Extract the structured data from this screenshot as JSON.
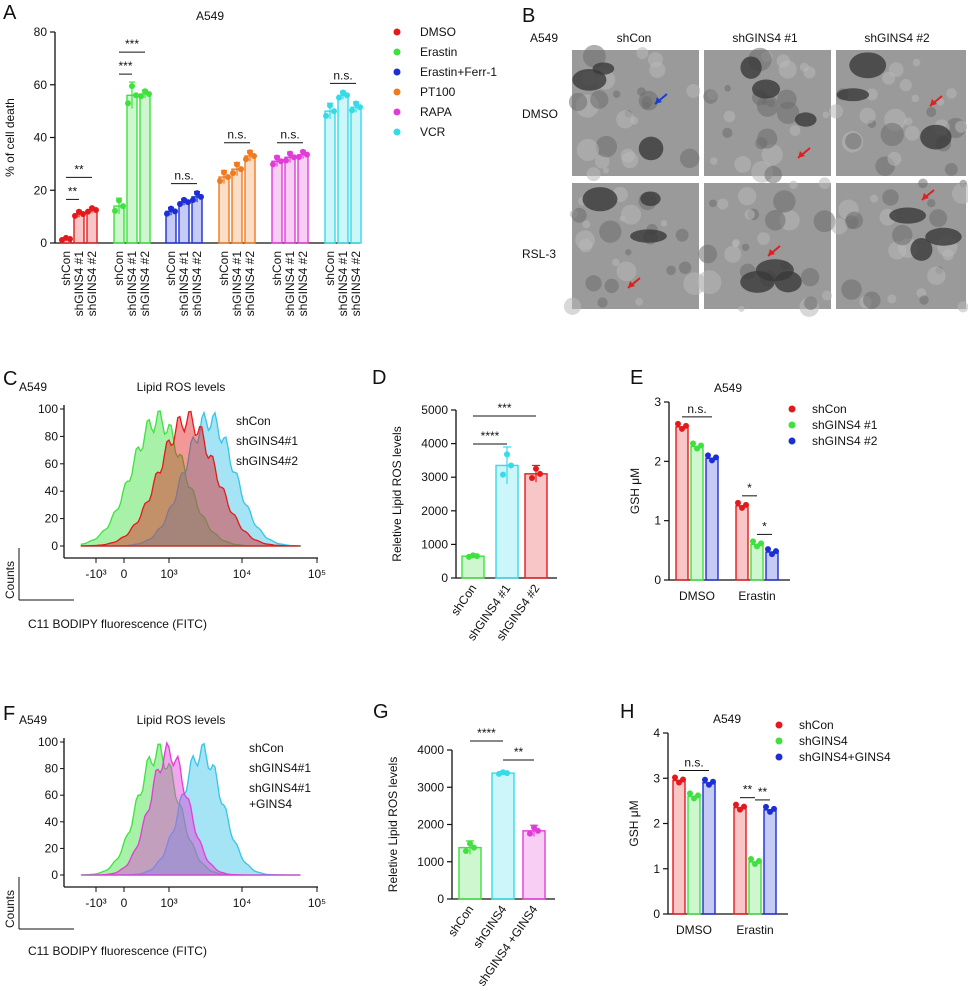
{
  "panels": {
    "A": "A",
    "B": "B",
    "C": "C",
    "D": "D",
    "E": "E",
    "F": "F",
    "G": "G",
    "H": "H"
  },
  "tem": {
    "cell_line": "A549",
    "columns": [
      "shCon",
      "shGINS4 #1",
      "shGINS4 #2"
    ],
    "rows": [
      "DMSO",
      "RSL-3"
    ],
    "arrow_colors": [
      "#1a3fd0",
      "#e02020"
    ]
  },
  "chart_data": [
    {
      "id": "A",
      "type": "bar",
      "title": "A549",
      "ylabel": "% of cell death",
      "ylim": [
        0,
        80
      ],
      "yticks": [
        0,
        20,
        40,
        60,
        80
      ],
      "categories": [
        "shCon",
        "shGINS4 #1",
        "shGINS4 #2"
      ],
      "series": [
        {
          "name": "DMSO",
          "color": "#e31a1c",
          "values": [
            1.5,
            11,
            12.5
          ],
          "err": [
            0.6,
            1.2,
            1.0
          ],
          "sig": [
            {
              "a": 0,
              "b": 1,
              "t": "**"
            },
            {
              "a": 0,
              "b": 2,
              "t": "**"
            }
          ]
        },
        {
          "name": "Erastin",
          "color": "#3ee13e",
          "values": [
            14,
            56,
            56.5
          ],
          "err": [
            3,
            5,
            1.5
          ],
          "sig": [
            {
              "a": 0,
              "b": 1,
              "t": "***"
            },
            {
              "a": 0,
              "b": 2,
              "t": "***"
            }
          ]
        },
        {
          "name": "Erastin+Ferr-1",
          "color": "#1c2fd6",
          "values": [
            12,
            15.5,
            17.5
          ],
          "err": [
            1.5,
            1.2,
            2
          ],
          "sig": [
            {
              "a": 0,
              "b": 2,
              "t": "n.s."
            }
          ]
        },
        {
          "name": "PT100",
          "color": "#f07a20",
          "values": [
            25,
            28,
            33
          ],
          "err": [
            2.5,
            2.5,
            2
          ],
          "sig": [
            {
              "a": 0,
              "b": 2,
              "t": "n.s."
            }
          ]
        },
        {
          "name": "RAPA",
          "color": "#e23cd8",
          "values": [
            31,
            32.5,
            33.5
          ],
          "err": [
            2,
            2,
            1.5
          ],
          "sig": [
            {
              "a": 0,
              "b": 2,
              "t": "n.s."
            }
          ]
        },
        {
          "name": "VCR",
          "color": "#35dbe8",
          "values": [
            50,
            56,
            51.5
          ],
          "err": [
            3,
            1.5,
            2
          ],
          "sig": [
            {
              "a": 0,
              "b": 2,
              "t": "n.s."
            }
          ]
        }
      ]
    },
    {
      "id": "C",
      "type": "histogram",
      "cell_line": "A549",
      "title": "Lipid ROS levels",
      "xlabel": "C11 BODIPY fluorescence (FITC)",
      "ylabel": "Counts",
      "yticks": [
        0,
        20,
        40,
        60,
        80,
        100
      ],
      "xticks": [
        "-10³",
        "0",
        "10³",
        "10⁴",
        "10⁵"
      ],
      "series": [
        {
          "name": "shCon",
          "color": "#3ee13e",
          "peak_log10": 2.85,
          "width": 0.36
        },
        {
          "name": "shGINS4#1",
          "color": "#35c4e8",
          "peak_log10": 3.55,
          "width": 0.34
        },
        {
          "name": "shGINS4#2",
          "color": "#e31a1c",
          "peak_log10": 3.25,
          "width": 0.38
        }
      ]
    },
    {
      "id": "D",
      "type": "bar",
      "ylabel": "Reletive  Lipid ROS levels",
      "ylim": [
        0,
        5000
      ],
      "yticks": [
        0,
        1000,
        2000,
        3000,
        4000,
        5000
      ],
      "categories": [
        "shCon",
        "shGINS4 #1",
        "shGINS4 #2"
      ],
      "colors": [
        "#3ee13e",
        "#35dbe8",
        "#e31a1c"
      ],
      "values": [
        650,
        3350,
        3100
      ],
      "err": [
        40,
        550,
        250
      ],
      "sig": [
        {
          "a": 0,
          "b": 1,
          "t": "****"
        },
        {
          "a": 0,
          "b": 2,
          "t": "***"
        }
      ]
    },
    {
      "id": "E",
      "type": "bar",
      "title": "A549",
      "ylabel": "GSH μM",
      "ylim": [
        0,
        3
      ],
      "yticks": [
        0,
        1,
        2,
        3
      ],
      "categories": [
        "DMSO",
        "Erastin"
      ],
      "series": [
        {
          "name": "shCon",
          "color": "#e31a1c",
          "values": [
            2.58,
            1.25
          ]
        },
        {
          "name": "shGINS4 #1",
          "color": "#3ee13e",
          "values": [
            2.25,
            0.6
          ]
        },
        {
          "name": "shGINS4 #2",
          "color": "#1c2fd6",
          "values": [
            2.05,
            0.47
          ]
        }
      ],
      "sig": [
        {
          "g": 0,
          "a": 0,
          "b": 2,
          "t": "n.s."
        },
        {
          "g": 1,
          "a": 0,
          "b": 1,
          "t": "*"
        },
        {
          "g": 1,
          "a": 1,
          "b": 2,
          "t": "*"
        }
      ]
    },
    {
      "id": "F",
      "type": "histogram",
      "cell_line": "A549",
      "title": "Lipid ROS levels",
      "xlabel": "C11 BODIPY fluorescence (FITC)",
      "ylabel": "Counts",
      "yticks": [
        0,
        20,
        40,
        60,
        80,
        100
      ],
      "xticks": [
        "-10³",
        "0",
        "10³",
        "10⁴",
        "10⁵"
      ],
      "series": [
        {
          "name": "shCon",
          "color": "#3ee13e",
          "peak_log10": 2.85,
          "width": 0.28
        },
        {
          "name": "shGINS4#1",
          "color": "#35c4e8",
          "peak_log10": 3.45,
          "width": 0.28
        },
        {
          "name": "shGINS4#1\n+GINS4",
          "color": "#e23cd8",
          "peak_log10": 3.0,
          "width": 0.26
        }
      ]
    },
    {
      "id": "G",
      "type": "bar",
      "ylabel": "Reletive  Lipid ROS levels",
      "ylim": [
        0,
        4000
      ],
      "yticks": [
        0,
        1000,
        2000,
        3000,
        4000
      ],
      "categories": [
        "shCon",
        "shGINS4",
        "shGINS4 +GINS4"
      ],
      "colors": [
        "#3ee13e",
        "#35dbe8",
        "#e23cd8"
      ],
      "values": [
        1380,
        3380,
        1830
      ],
      "err": [
        180,
        40,
        150
      ],
      "sig": [
        {
          "a": 0,
          "b": 1,
          "t": "****"
        },
        {
          "a": 1,
          "b": 2,
          "t": "**"
        }
      ]
    },
    {
      "id": "H",
      "type": "bar",
      "title": "A549",
      "ylabel": "GSH μM",
      "ylim": [
        0,
        4
      ],
      "yticks": [
        0,
        1,
        2,
        3,
        4
      ],
      "categories": [
        "DMSO",
        "Erastin"
      ],
      "series": [
        {
          "name": "shCon",
          "color": "#e31a1c",
          "values": [
            2.95,
            2.35
          ]
        },
        {
          "name": "shGINS4",
          "color": "#3ee13e",
          "values": [
            2.6,
            1.15
          ]
        },
        {
          "name": "shGINS4+GINS4",
          "color": "#1c2fd6",
          "values": [
            2.9,
            2.3
          ]
        }
      ],
      "sig": [
        {
          "g": 0,
          "a": 0,
          "b": 2,
          "t": "n.s."
        },
        {
          "g": 1,
          "a": 0,
          "b": 1,
          "t": "**"
        },
        {
          "g": 1,
          "a": 1,
          "b": 2,
          "t": "**"
        }
      ]
    }
  ]
}
